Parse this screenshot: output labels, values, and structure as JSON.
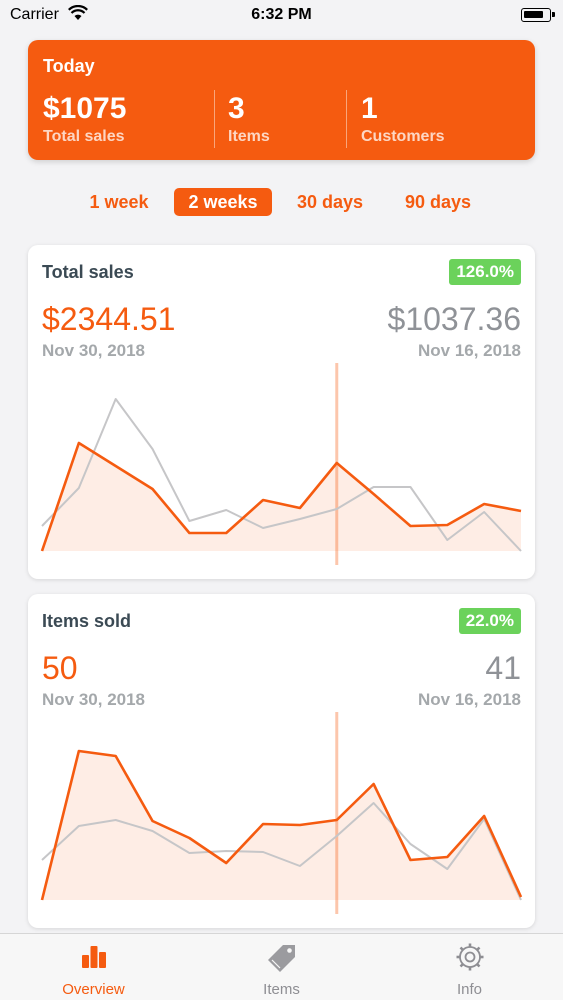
{
  "status_bar": {
    "carrier": "Carrier",
    "time": "6:32 PM"
  },
  "today": {
    "title": "Today",
    "total_sales": {
      "value": "$1075",
      "label": "Total sales"
    },
    "items": {
      "value": "3",
      "label": "Items"
    },
    "customers": {
      "value": "1",
      "label": "Customers"
    }
  },
  "range": {
    "options": [
      "1 week",
      "2 weeks",
      "30 days",
      "90 days"
    ],
    "selected": "2 weeks"
  },
  "colors": {
    "accent": "#f55b10",
    "positive": "#6bd25b",
    "comparison_line": "#c6c6c8"
  },
  "cards": {
    "total_sales": {
      "title": "Total sales",
      "delta": "126.0%",
      "current_value": "$2344.51",
      "current_date": "Nov 30, 2018",
      "previous_value": "$1037.36",
      "previous_date": "Nov 16, 2018"
    },
    "items_sold": {
      "title": "Items sold",
      "delta": "22.0%",
      "current_value": "50",
      "current_date": "Nov 30, 2018",
      "previous_value": "41",
      "previous_date": "Nov 16, 2018"
    }
  },
  "chart_data": [
    {
      "type": "area",
      "series": [
        {
          "values": [
            0,
            108,
            85,
            62,
            18,
            18,
            51,
            43,
            88,
            57,
            25,
            26,
            47,
            40
          ]
        },
        {
          "values": [
            25,
            63,
            152,
            102,
            30,
            41,
            23,
            32,
            42,
            64,
            64,
            11,
            39,
            0
          ]
        }
      ],
      "ylim": [
        0,
        170
      ],
      "marker_index": 8
    },
    {
      "type": "area",
      "series": [
        {
          "values": [
            0,
            149,
            144,
            79,
            62,
            37,
            76,
            75,
            80,
            116,
            40,
            43,
            84,
            3
          ]
        },
        {
          "values": [
            40,
            74,
            80,
            69,
            47,
            49,
            48,
            34,
            64,
            97,
            56,
            31,
            81,
            0
          ]
        }
      ],
      "ylim": [
        0,
        170
      ],
      "marker_index": 8
    }
  ],
  "tabs": [
    {
      "label": "Overview",
      "icon": "bar-chart-icon",
      "active": true
    },
    {
      "label": "Items",
      "icon": "tag-icon",
      "active": false
    },
    {
      "label": "Info",
      "icon": "gear-icon",
      "active": false
    }
  ]
}
